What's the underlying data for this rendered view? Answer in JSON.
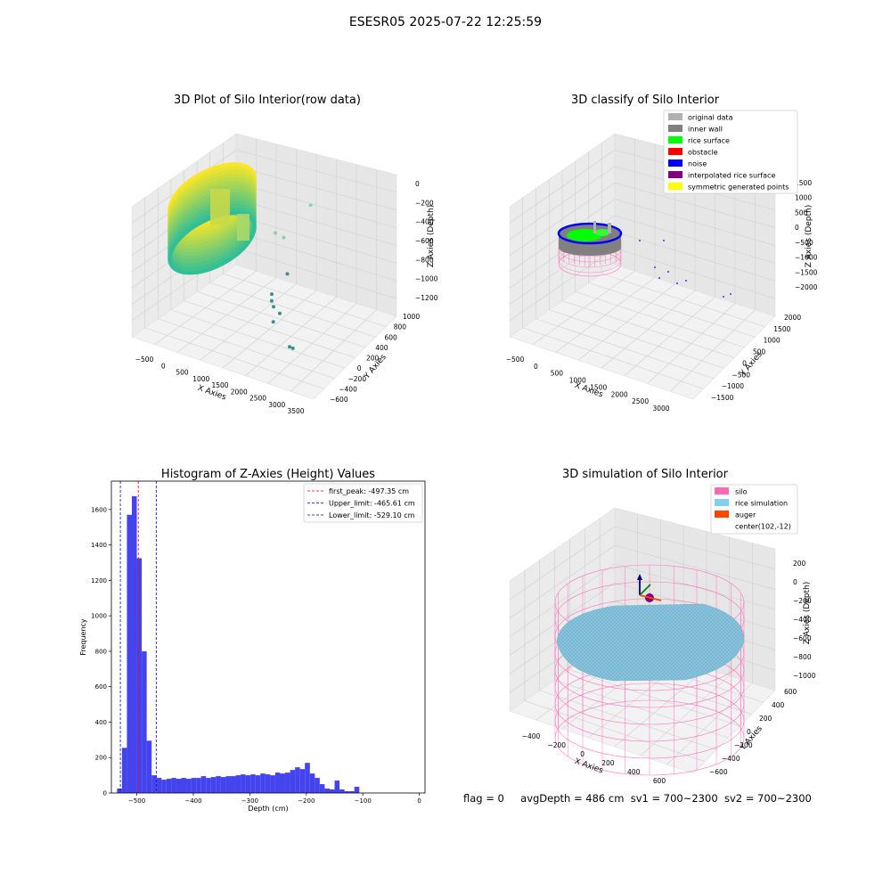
{
  "figure": {
    "suptitle": "ESESR05 2025-07-22 12:25:59",
    "status": {
      "flag": "flag = 0",
      "avg_depth": "avgDepth = 486 cm",
      "sv1": "sv1 = 700~2300",
      "sv2": "sv2 = 700~2300"
    }
  },
  "chart_data": [
    {
      "type": "scatter",
      "projection": "3d",
      "title": "3D Plot of Silo Interior(row data)",
      "xlabel": "X Axies",
      "ylabel": "Y Axies",
      "zlabel": "Z Axies (Depth)",
      "x_ticks": [
        "−500",
        "0",
        "500",
        "1000",
        "1500",
        "2000",
        "2500",
        "3000",
        "3500"
      ],
      "y_ticks": [
        "−600",
        "−400",
        "−200",
        "0",
        "200",
        "400",
        "600",
        "800",
        "1000"
      ],
      "z_ticks": [
        "−1200",
        "−1000",
        "−800",
        "−600",
        "−400",
        "−200",
        "0"
      ],
      "xlim": [
        -600,
        3600
      ],
      "ylim": [
        -700,
        1050
      ],
      "zlim": [
        -1300,
        50
      ],
      "grid": true,
      "colormap": "viridis",
      "outlier_points": [
        {
          "x": 2100,
          "y": 700,
          "z": -280
        },
        {
          "x": 1700,
          "y": 300,
          "z": -500
        },
        {
          "x": 1900,
          "y": 300,
          "z": -520
        },
        {
          "x": 2200,
          "y": 100,
          "z": -820
        },
        {
          "x": 2050,
          "y": -100,
          "z": -1000
        },
        {
          "x": 2100,
          "y": -150,
          "z": -1050
        },
        {
          "x": 2200,
          "y": -200,
          "z": -1080
        },
        {
          "x": 2400,
          "y": -250,
          "z": -1100
        },
        {
          "x": 2300,
          "y": -300,
          "z": -1200
        },
        {
          "x": 2900,
          "y": -500,
          "z": -1300
        },
        {
          "x": 3000,
          "y": -520,
          "z": -1290
        }
      ]
    },
    {
      "type": "scatter",
      "projection": "3d",
      "title": "3D classify of Silo Interior",
      "xlabel": "X Axies",
      "ylabel": "Y Axies",
      "zlabel": "Z Axies (Depth)",
      "x_ticks": [
        "−500",
        "0",
        "500",
        "1000",
        "1500",
        "2000",
        "2500",
        "3000"
      ],
      "y_ticks": [
        "−1500",
        "−1000",
        "−500",
        "0",
        "500",
        "1000",
        "1500",
        "2000"
      ],
      "z_ticks": [
        "−2000",
        "−1500",
        "−1000",
        "−500",
        "0",
        "500",
        "1000",
        "1500"
      ],
      "grid": true,
      "legend_position": "upper-right",
      "legend": [
        {
          "label": "original data",
          "color": "#b0b0b0"
        },
        {
          "label": "inner wall",
          "color": "#808080"
        },
        {
          "label": "rice surface",
          "color": "#00ff00"
        },
        {
          "label": "obstacle",
          "color": "#ff0000"
        },
        {
          "label": "noise",
          "color": "#0000ff"
        },
        {
          "label": "interpolated rice surface",
          "color": "#800080"
        },
        {
          "label": "symmetric generated points",
          "color": "#ffff00"
        }
      ]
    },
    {
      "type": "bar",
      "title": "Histogram of Z-Axies (Height) Values",
      "xlabel": "Depth (cm)",
      "ylabel": "Frequency",
      "xlim": [
        -545,
        10
      ],
      "ylim": [
        0,
        1760
      ],
      "x_ticks": [
        -500,
        -400,
        -300,
        -200,
        -100,
        0
      ],
      "y_ticks": [
        0,
        200,
        400,
        600,
        800,
        1000,
        1200,
        1400,
        1600
      ],
      "bar_color": "#4444ee",
      "bin_width": 8.75,
      "bins_start": -535,
      "values": [
        25,
        255,
        1570,
        1675,
        1325,
        800,
        295,
        100,
        85,
        75,
        80,
        85,
        80,
        85,
        80,
        85,
        85,
        95,
        85,
        90,
        95,
        90,
        95,
        95,
        100,
        105,
        100,
        105,
        100,
        110,
        105,
        100,
        115,
        110,
        115,
        130,
        145,
        135,
        170,
        110,
        85,
        50,
        25,
        20,
        70,
        20,
        10,
        10,
        35
      ],
      "lines": [
        {
          "label": "first_peak: -497.35 cm",
          "value": -497.35,
          "color": "#ff0000"
        },
        {
          "label": "Upper_limit: -465.61 cm",
          "value": -465.61,
          "color": "#0000cc"
        },
        {
          "label": "Lower_limit: -529.10 cm",
          "value": -529.1,
          "color": "#0000cc"
        }
      ],
      "legend_position": "upper-right"
    },
    {
      "type": "scatter",
      "projection": "3d",
      "title": "3D simulation of Silo Interior",
      "xlabel": "X Axies",
      "ylabel": "Y Axies",
      "zlabel": "Z Axies (Depth)",
      "x_ticks": [
        "−400",
        "−200",
        "0",
        "200",
        "400",
        "600"
      ],
      "y_ticks": [
        "−600",
        "−400",
        "−200",
        "0",
        "200",
        "400",
        "600"
      ],
      "z_ticks": [
        "−1000",
        "−800",
        "−600",
        "−400",
        "−200",
        "0",
        "200"
      ],
      "grid": true,
      "legend_position": "upper-right",
      "legend": [
        {
          "label": "silo",
          "color": "#ff69b4"
        },
        {
          "label": "rice simulation",
          "color": "#87ceeb"
        },
        {
          "label": "auger",
          "color": "#ff4500"
        },
        {
          "label": "center(102,-12)",
          "color": "#ffffff"
        }
      ]
    }
  ]
}
